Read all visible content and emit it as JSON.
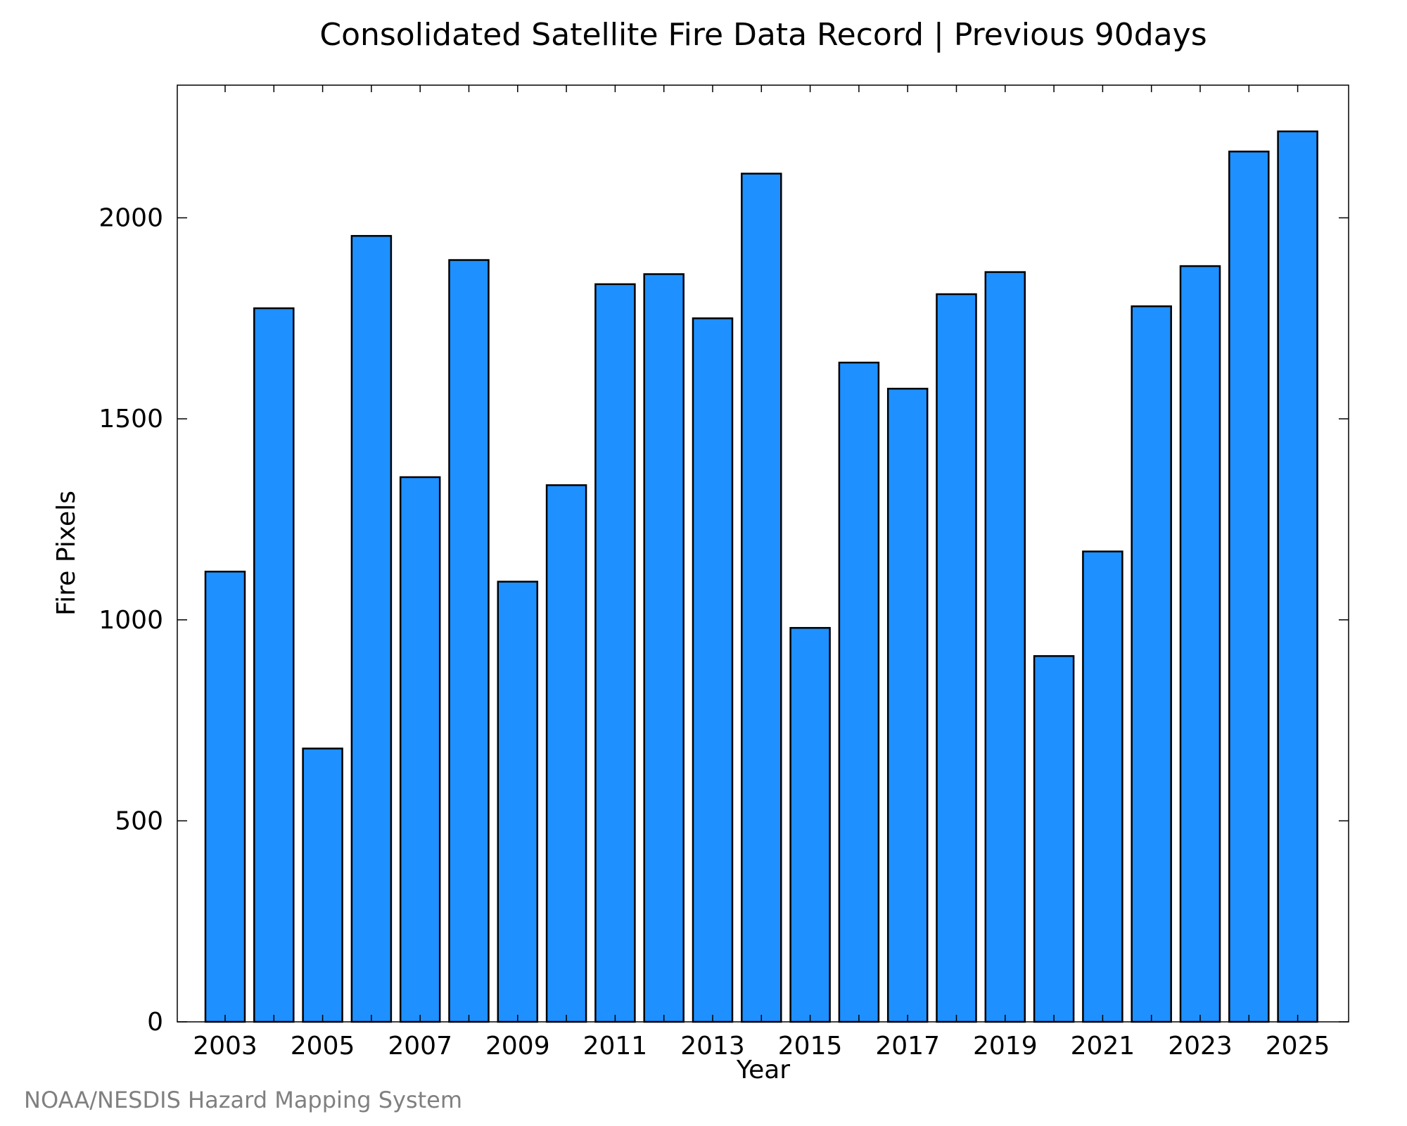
{
  "credit": "NOAA/NESDIS Hazard Mapping System",
  "chart_data": {
    "type": "bar",
    "title": "Consolidated Satellite Fire Data Record | Previous 90days",
    "xlabel": "Year",
    "ylabel": "Fire Pixels",
    "categories": [
      "2003",
      "2004",
      "2005",
      "2006",
      "2007",
      "2008",
      "2009",
      "2010",
      "2011",
      "2012",
      "2013",
      "2014",
      "2015",
      "2016",
      "2017",
      "2018",
      "2019",
      "2020",
      "2021",
      "2022",
      "2023",
      "2024",
      "2025"
    ],
    "x_tick_labels": [
      "2003",
      "2005",
      "2007",
      "2009",
      "2011",
      "2013",
      "2015",
      "2017",
      "2019",
      "2021",
      "2023",
      "2025"
    ],
    "values": [
      1120,
      1775,
      680,
      1955,
      1355,
      1895,
      1095,
      1335,
      1835,
      1860,
      1750,
      2110,
      980,
      1640,
      1575,
      1810,
      1865,
      910,
      1170,
      1780,
      1880,
      2165,
      2215
    ],
    "ylim": [
      0,
      2330
    ],
    "y_ticks": [
      0,
      500,
      1000,
      1500,
      2000
    ],
    "grid": false,
    "legend": "none",
    "bar_color": "#1e90ff"
  }
}
